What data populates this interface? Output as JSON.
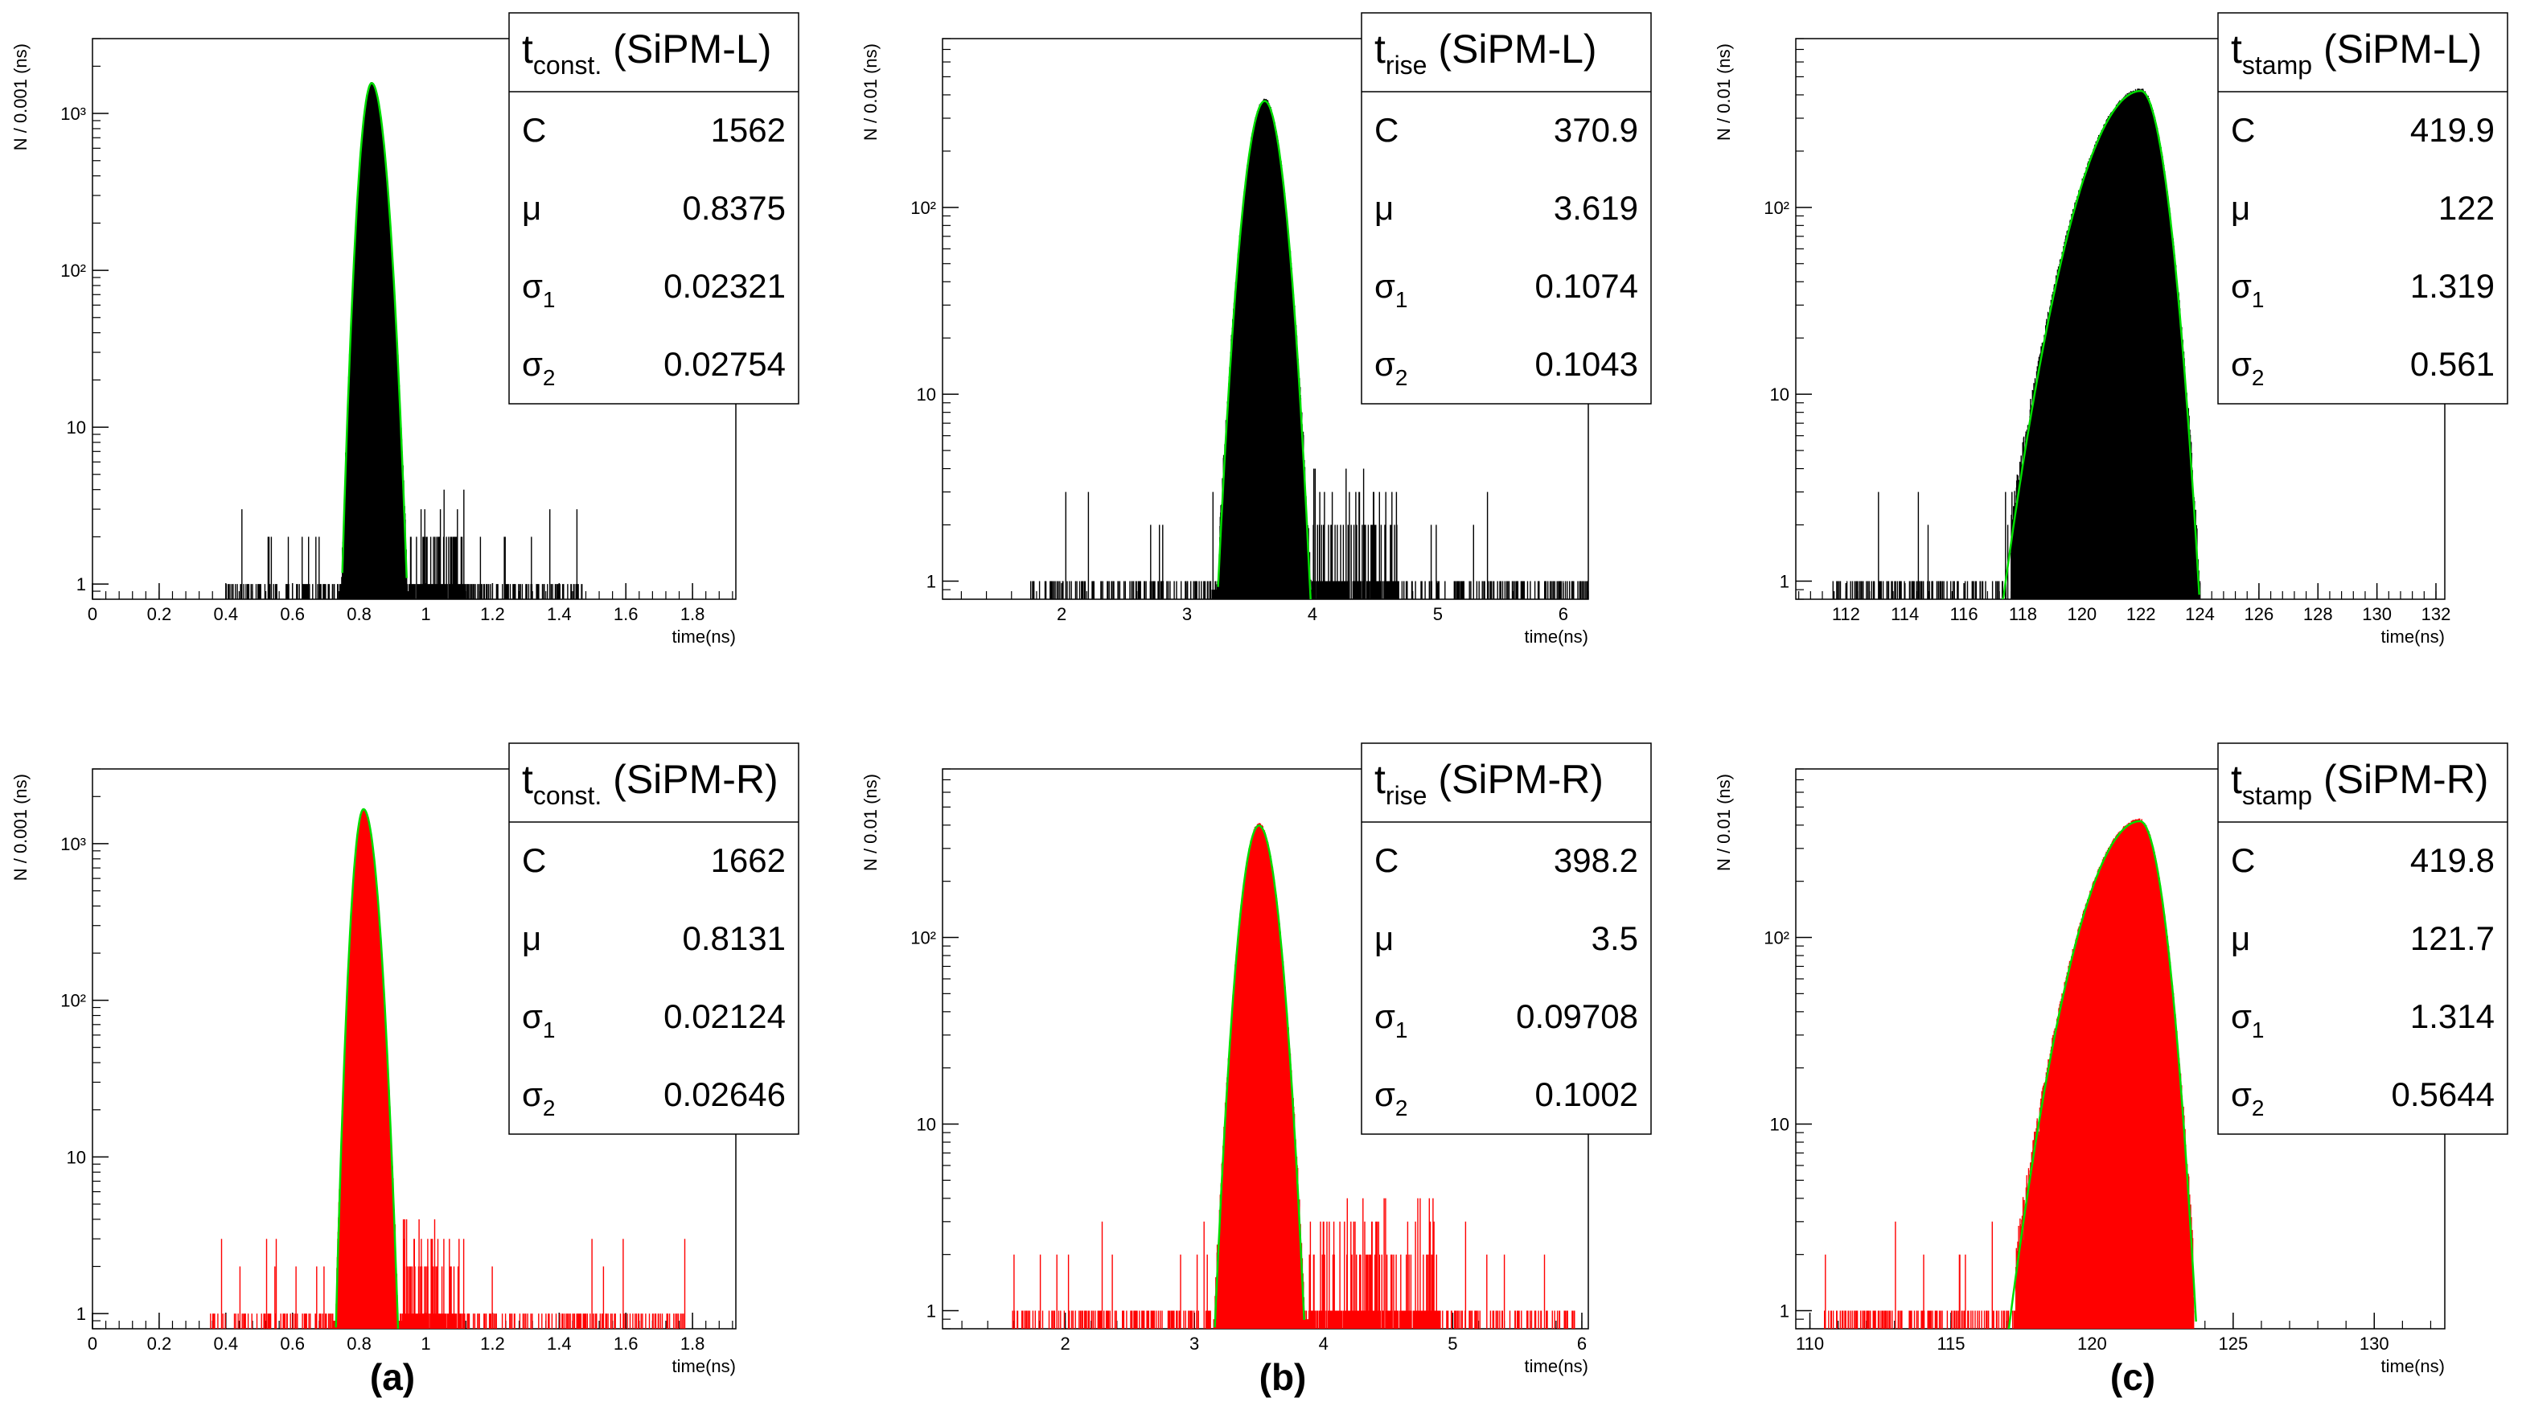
{
  "chart_data": [
    {
      "type": "histogram",
      "id": "tconst_L",
      "stats_title": {
        "main": "t",
        "sub": "const.",
        "suffix": " (SiPM-L)"
      },
      "stats": [
        {
          "sym": "C",
          "sub": "",
          "value": "1562"
        },
        {
          "sym": "μ",
          "sub": "",
          "value": "0.8375"
        },
        {
          "sym": "σ",
          "sub": "1",
          "value": "0.02321"
        },
        {
          "sym": "σ",
          "sub": "2",
          "value": "0.02754"
        }
      ],
      "ylabel": "N / 0.001 (ns)",
      "xlabel": "time(ns)",
      "xlim": [
        0,
        1.93
      ],
      "ylim": [
        0.8,
        3000
      ],
      "yscale": "log",
      "xticks": [
        0,
        0.2,
        0.4,
        0.6,
        0.8,
        1,
        1.2,
        1.4,
        1.6,
        1.8
      ],
      "xtick_labels": [
        "0",
        "0.2",
        "0.4",
        "0.6",
        "0.8",
        "1",
        "1.2",
        "1.4",
        "1.6",
        "1.8"
      ],
      "yticks": [
        1,
        10,
        100,
        1000
      ],
      "ytick_labels": [
        "1",
        "10",
        "10²",
        "10³"
      ],
      "hist_color": "#000000",
      "fit_color": "#00dd00",
      "peak": 0.8375,
      "amp": 1562,
      "sigma_left": 0.02321,
      "sigma_right": 0.02754,
      "noise_range": [
        0.4,
        1.47
      ],
      "core_range": [
        0.74,
        0.95
      ],
      "tail_right": [
        0.95,
        1.12
      ]
    },
    {
      "type": "histogram",
      "id": "trise_L",
      "stats_title": {
        "main": "t",
        "sub": "rise",
        "suffix": " (SiPM-L)"
      },
      "stats": [
        {
          "sym": "C",
          "sub": "",
          "value": "370.9"
        },
        {
          "sym": "μ",
          "sub": "",
          "value": "3.619"
        },
        {
          "sym": "σ",
          "sub": "1",
          "value": "0.1074"
        },
        {
          "sym": "σ",
          "sub": "2",
          "value": "0.1043"
        }
      ],
      "ylabel": "N / 0.01 (ns)",
      "xlabel": "time(ns)",
      "xlim": [
        1.05,
        6.2
      ],
      "ylim": [
        0.8,
        800
      ],
      "yscale": "log",
      "xticks": [
        2,
        3,
        4,
        5,
        6
      ],
      "xtick_labels": [
        "2",
        "3",
        "4",
        "5",
        "6"
      ],
      "yticks": [
        1,
        10,
        100
      ],
      "ytick_labels": [
        "1",
        "10",
        "10²"
      ],
      "hist_color": "#000000",
      "fit_color": "#00dd00",
      "peak": 3.619,
      "amp": 370.9,
      "sigma_left": 0.1074,
      "sigma_right": 0.1043,
      "noise_range": [
        1.75,
        6.2
      ],
      "core_range": [
        3.2,
        4.0
      ],
      "tail_right": [
        4.0,
        4.7
      ]
    },
    {
      "type": "histogram",
      "id": "tstamp_L",
      "stats_title": {
        "main": "t",
        "sub": "stamp",
        "suffix": " (SiPM-L)"
      },
      "stats": [
        {
          "sym": "C",
          "sub": "",
          "value": "419.9"
        },
        {
          "sym": "μ",
          "sub": "",
          "value": "122"
        },
        {
          "sym": "σ",
          "sub": "1",
          "value": "1.319"
        },
        {
          "sym": "σ",
          "sub": "2",
          "value": "0.561"
        }
      ],
      "ylabel": "N / 0.01 (ns)",
      "xlabel": "time(ns)",
      "xlim": [
        110.3,
        132.3
      ],
      "ylim": [
        0.8,
        800
      ],
      "yscale": "log",
      "xticks": [
        112,
        114,
        116,
        118,
        120,
        122,
        124,
        126,
        128,
        130,
        132
      ],
      "xtick_labels": [
        "112",
        "114",
        "116",
        "118",
        "120",
        "122",
        "124",
        "126",
        "128",
        "130",
        "132"
      ],
      "yticks": [
        1,
        10,
        100
      ],
      "ytick_labels": [
        "1",
        "10",
        "10²"
      ],
      "hist_color": "#000000",
      "fit_color": "#00dd00",
      "peak": 122,
      "amp": 419.9,
      "sigma_left": 1.319,
      "sigma_right": 0.561,
      "noise_range": [
        111.5,
        118.5
      ],
      "core_range": [
        117.6,
        124.0
      ],
      "tail_right": [
        124.0,
        124.0
      ]
    },
    {
      "type": "histogram",
      "id": "tconst_R",
      "stats_title": {
        "main": "t",
        "sub": "const.",
        "suffix": " (SiPM-R)"
      },
      "stats": [
        {
          "sym": "C",
          "sub": "",
          "value": "1662"
        },
        {
          "sym": "μ",
          "sub": "",
          "value": "0.8131"
        },
        {
          "sym": "σ",
          "sub": "1",
          "value": "0.02124"
        },
        {
          "sym": "σ",
          "sub": "2",
          "value": "0.02646"
        }
      ],
      "ylabel": "N / 0.001 (ns)",
      "xlabel": "time(ns)",
      "xlim": [
        0,
        1.93
      ],
      "ylim": [
        0.8,
        3000
      ],
      "yscale": "log",
      "xticks": [
        0,
        0.2,
        0.4,
        0.6,
        0.8,
        1,
        1.2,
        1.4,
        1.6,
        1.8
      ],
      "xtick_labels": [
        "0",
        "0.2",
        "0.4",
        "0.6",
        "0.8",
        "1",
        "1.2",
        "1.4",
        "1.6",
        "1.8"
      ],
      "yticks": [
        1,
        10,
        100,
        1000
      ],
      "ytick_labels": [
        "1",
        "10",
        "10²",
        "10³"
      ],
      "hist_color": "#ff0000",
      "fit_color": "#00dd00",
      "peak": 0.8131,
      "amp": 1662,
      "sigma_left": 0.02124,
      "sigma_right": 0.02646,
      "noise_range": [
        0.35,
        1.78
      ],
      "core_range": [
        0.72,
        0.93
      ],
      "tail_right": [
        0.93,
        1.1
      ]
    },
    {
      "type": "histogram",
      "id": "trise_R",
      "stats_title": {
        "main": "t",
        "sub": "rise",
        "suffix": " (SiPM-R)"
      },
      "stats": [
        {
          "sym": "C",
          "sub": "",
          "value": "398.2"
        },
        {
          "sym": "μ",
          "sub": "",
          "value": "3.5"
        },
        {
          "sym": "σ",
          "sub": "1",
          "value": "0.09708"
        },
        {
          "sym": "σ",
          "sub": "2",
          "value": "0.1002"
        }
      ],
      "ylabel": "N / 0.01 (ns)",
      "xlabel": "time(ns)",
      "xlim": [
        1.05,
        6.05
      ],
      "ylim": [
        0.8,
        800
      ],
      "yscale": "log",
      "xticks": [
        2,
        3,
        4,
        5,
        6
      ],
      "xtick_labels": [
        "2",
        "3",
        "4",
        "5",
        "6"
      ],
      "yticks": [
        1,
        10,
        100
      ],
      "ytick_labels": [
        "1",
        "10",
        "10²"
      ],
      "hist_color": "#ff0000",
      "fit_color": "#00dd00",
      "peak": 3.5,
      "amp": 398.2,
      "sigma_left": 0.09708,
      "sigma_right": 0.1002,
      "noise_range": [
        1.55,
        5.95
      ],
      "core_range": [
        3.15,
        3.88
      ],
      "tail_right": [
        3.88,
        4.9
      ]
    },
    {
      "type": "histogram",
      "id": "tstamp_R",
      "stats_title": {
        "main": "t",
        "sub": "stamp",
        "suffix": " (SiPM-R)"
      },
      "stats": [
        {
          "sym": "C",
          "sub": "",
          "value": "419.8"
        },
        {
          "sym": "μ",
          "sub": "",
          "value": "121.7"
        },
        {
          "sym": "σ",
          "sub": "1",
          "value": "1.314"
        },
        {
          "sym": "σ",
          "sub": "2",
          "value": "0.5644"
        }
      ],
      "ylabel": "N / 0.01 (ns)",
      "xlabel": "time(ns)",
      "xlim": [
        109.5,
        132.5
      ],
      "ylim": [
        0.8,
        800
      ],
      "yscale": "log",
      "xticks": [
        110,
        115,
        120,
        125,
        130
      ],
      "xtick_labels": [
        "110",
        "115",
        "120",
        "125",
        "130"
      ],
      "yticks": [
        1,
        10,
        100
      ],
      "ytick_labels": [
        "1",
        "10",
        "10²"
      ],
      "hist_color": "#ff0000",
      "fit_color": "#00dd00",
      "peak": 121.7,
      "amp": 419.8,
      "sigma_left": 1.314,
      "sigma_right": 0.5644,
      "noise_range": [
        110.5,
        118.0
      ],
      "core_range": [
        117.3,
        123.6
      ],
      "tail_right": [
        123.6,
        123.6
      ]
    }
  ],
  "panel_labels": [
    "(a)",
    "(b)",
    "(c)"
  ]
}
